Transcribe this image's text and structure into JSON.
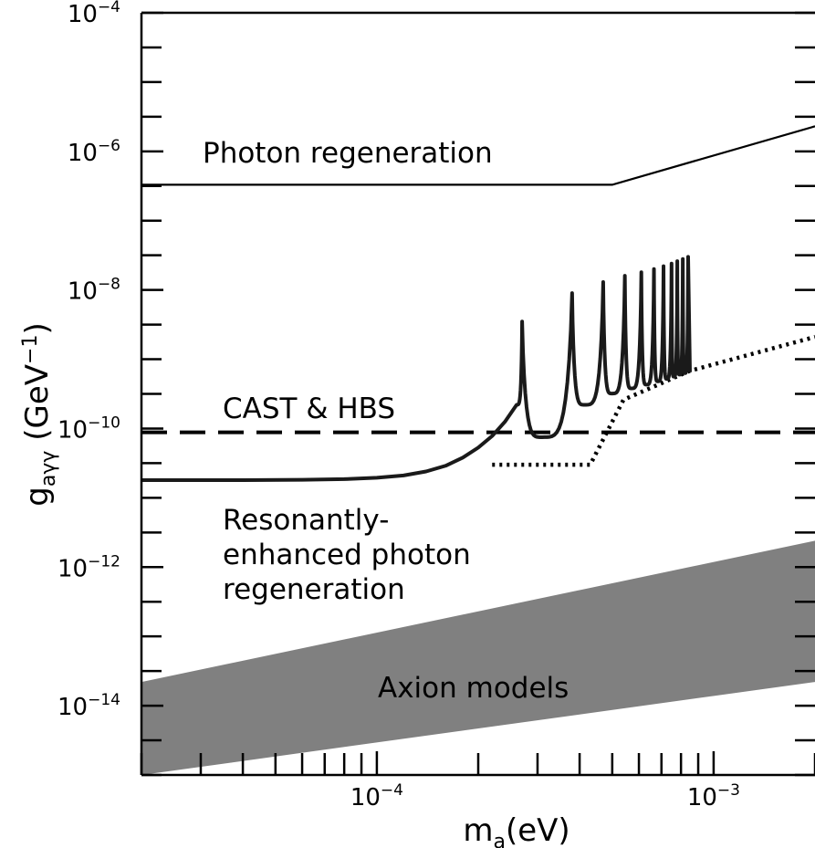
{
  "chart_data": {
    "type": "line",
    "x_scale": "log",
    "y_scale": "log",
    "xlim": [
      2e-05,
      0.002
    ],
    "ylim": [
      1e-15,
      0.0001
    ],
    "grid": false,
    "xlabel": {
      "base": "m",
      "sub": "a",
      "rest": "(eV)"
    },
    "ylabel": {
      "base": "g",
      "sub": "aγγ",
      "rest": "(GeV",
      "sup": "−1",
      "close": ")"
    },
    "x_ticks": [
      {
        "value": 0.0001,
        "base": "10",
        "exp": "−4"
      },
      {
        "value": 0.001,
        "base": "10",
        "exp": "−3"
      }
    ],
    "y_ticks": [
      {
        "value": 0.0001,
        "base": "10",
        "exp": "−4"
      },
      {
        "value": 1e-06,
        "base": "10",
        "exp": "−6"
      },
      {
        "value": 1e-08,
        "base": "10",
        "exp": "−8"
      },
      {
        "value": 1e-10,
        "base": "10",
        "exp": "−10"
      },
      {
        "value": 1e-12,
        "base": "10",
        "exp": "−12"
      },
      {
        "value": 1e-14,
        "base": "10",
        "exp": "−14"
      }
    ],
    "series": [
      {
        "name": "Photon regeneration",
        "style": "solid",
        "x": [
          2e-05,
          0.0005,
          0.002
        ],
        "y": [
          3.3e-07,
          3.3e-07,
          2.3e-06
        ]
      },
      {
        "name": "CAST & HBS",
        "style": "dashed",
        "x": [
          2e-05,
          0.002
        ],
        "y": [
          8.8e-11,
          8.8e-11
        ]
      },
      {
        "name": "Resonantly-enhanced photon regeneration",
        "style": "thick",
        "baseline_x": [
          2e-05,
          4e-05,
          6e-05,
          8e-05,
          0.0001,
          0.00012,
          0.00014,
          0.00016,
          0.00018,
          0.0002,
          0.00022,
          0.00024,
          0.00026
        ],
        "baseline_y": [
          1.8e-11,
          1.8e-11,
          1.82e-11,
          1.86e-11,
          1.95e-11,
          2.1e-11,
          2.4e-11,
          2.9e-11,
          3.8e-11,
          5.3e-11,
          7.8e-11,
          1.25e-10,
          2.2e-10
        ],
        "resonance_peaks_x": [
          0.00027,
          0.00038,
          0.00047,
          0.000545,
          0.00061,
          0.000665,
          0.00071,
          0.00075,
          0.00078,
          0.00081,
          0.00084
        ],
        "resonance_peaks_y": [
          3.5e-09,
          9e-09,
          1.3e-08,
          1.6e-08,
          1.8e-08,
          2e-08,
          2.2e-08,
          2.4e-08,
          2.6e-08,
          2.8e-08,
          3e-08
        ],
        "resonance_minima_y": [
          7.5e-11,
          2.2e-10,
          3.2e-10,
          3.8e-10,
          4.3e-10,
          4.8e-10,
          5.2e-10,
          5.6e-10,
          6e-10,
          6.3e-10
        ]
      },
      {
        "name": "",
        "style": "dotted",
        "x": [
          0.00022,
          0.00043,
          0.00054,
          0.00085,
          0.002
        ],
        "y": [
          3e-11,
          3e-11,
          2.6e-10,
          6.8e-10,
          2.1e-09
        ]
      },
      {
        "name": "Axion models",
        "style": "band",
        "x": [
          2e-05,
          0.002
        ],
        "y_low": [
          1e-15,
          2.2e-14
        ],
        "y_high": [
          2.2e-14,
          2.4e-12
        ]
      }
    ],
    "annotations": [
      {
        "lines": [
          "Photon regeneration"
        ]
      },
      {
        "lines": [
          "CAST & HBS"
        ]
      },
      {
        "lines": [
          "Resonantly-",
          "enhanced photon",
          "regeneration"
        ]
      },
      {
        "lines": [
          "Axion models"
        ]
      }
    ]
  }
}
